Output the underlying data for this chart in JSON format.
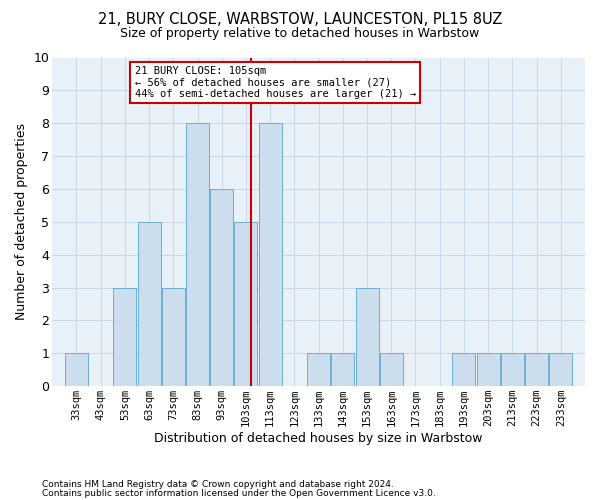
{
  "title1": "21, BURY CLOSE, WARBSTOW, LAUNCESTON, PL15 8UZ",
  "title2": "Size of property relative to detached houses in Warbstow",
  "xlabel": "Distribution of detached houses by size in Warbstow",
  "ylabel": "Number of detached properties",
  "footnote1": "Contains HM Land Registry data © Crown copyright and database right 2024.",
  "footnote2": "Contains public sector information licensed under the Open Government Licence v3.0.",
  "annotation_line1": "21 BURY CLOSE: 105sqm",
  "annotation_line2": "← 56% of detached houses are smaller (27)",
  "annotation_line3": "44% of semi-detached houses are larger (21) →",
  "marker_value": 105,
  "bar_centers": [
    33,
    43,
    53,
    63,
    73,
    83,
    93,
    103,
    113,
    123,
    133,
    143,
    153,
    163,
    173,
    183,
    193,
    203,
    213,
    223,
    233
  ],
  "bar_heights": [
    1,
    0,
    3,
    5,
    3,
    8,
    6,
    5,
    8,
    0,
    1,
    1,
    3,
    1,
    0,
    0,
    1,
    1,
    1,
    1,
    1
  ],
  "bar_width": 9.5,
  "bar_color": "#ccdded",
  "bar_edgecolor": "#6baed6",
  "tick_labels": [
    "33sqm",
    "43sqm",
    "53sqm",
    "63sqm",
    "73sqm",
    "83sqm",
    "93sqm",
    "103sqm",
    "113sqm",
    "123sqm",
    "133sqm",
    "143sqm",
    "153sqm",
    "163sqm",
    "173sqm",
    "183sqm",
    "193sqm",
    "203sqm",
    "213sqm",
    "223sqm",
    "233sqm"
  ],
  "tick_positions": [
    33,
    43,
    53,
    63,
    73,
    83,
    93,
    103,
    113,
    123,
    133,
    143,
    153,
    163,
    173,
    183,
    193,
    203,
    213,
    223,
    233
  ],
  "ylim": [
    0,
    10
  ],
  "xlim": [
    23,
    243
  ],
  "grid_color": "#c8d8e8",
  "marker_color": "#cc0000",
  "annotation_box_color": "#cc0000",
  "background_color": "#e8f0f8"
}
